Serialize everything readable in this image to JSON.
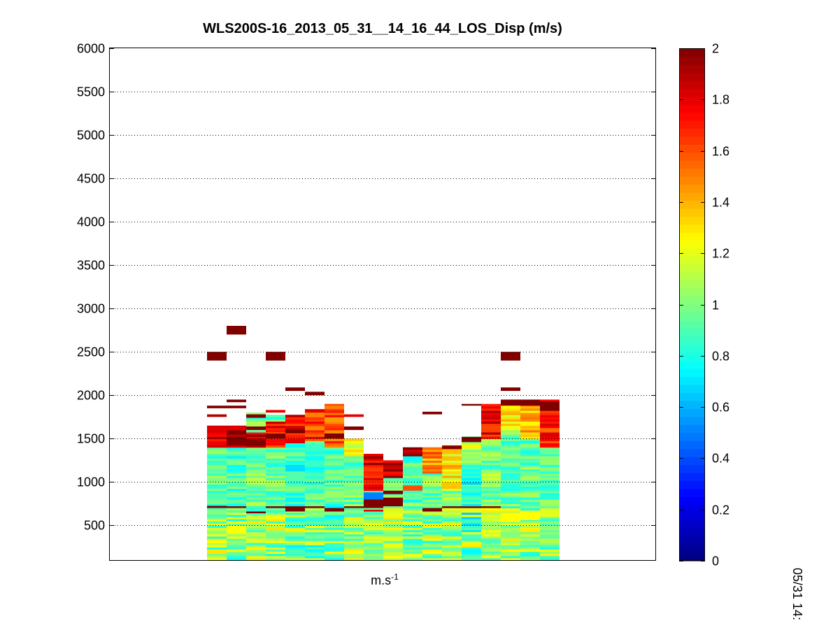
{
  "chart_data": {
    "type": "heatmap",
    "title": "WLS200S-16_2013_05_31__14_16_44_LOS_Disp (m/s)",
    "xlabel_base": "m.s",
    "xlabel_exp": "-1",
    "ylabel": "",
    "ylim": [
      100,
      6000
    ],
    "yticks": [
      500,
      1000,
      1500,
      2000,
      2500,
      3000,
      3500,
      4000,
      4500,
      5000,
      5500,
      6000
    ],
    "grid": "horizontal-dotted",
    "colorbar": {
      "colormap": "jet",
      "range": [
        0,
        2
      ],
      "ticks": [
        "0",
        "0.2",
        "0.4",
        "0.6",
        "0.8",
        "1",
        "1.2",
        "1.4",
        "1.6",
        "1.8",
        "2"
      ]
    },
    "profile_count": 18,
    "range_gate_m": 25,
    "profiles": [
      {
        "top": 1640,
        "mid": 0.95,
        "highband": [
          1400,
          1640,
          1.85
        ],
        "extras": [
          [
            2400,
            2500,
            2.0
          ],
          [
            1850,
            1880,
            2.0
          ],
          [
            1750,
            1780,
            1.9
          ],
          [
            700,
            725,
            2.0
          ]
        ]
      },
      {
        "top": 1640,
        "mid": 0.9,
        "highband": [
          1380,
          1640,
          1.95
        ],
        "extras": [
          [
            2700,
            2800,
            2.0
          ],
          [
            1920,
            1950,
            2.0
          ],
          [
            1850,
            1880,
            2.0
          ],
          [
            700,
            720,
            2.0
          ]
        ]
      },
      {
        "top": 1780,
        "mid": 1.0,
        "highband": [
          1380,
          1560,
          1.9
        ],
        "extras": [
          [
            1600,
            1640,
            2.0
          ],
          [
            1740,
            1780,
            2.0
          ],
          [
            640,
            660,
            2.0
          ]
        ]
      },
      {
        "top": 1760,
        "mid": 0.95,
        "highband": [
          1400,
          1700,
          1.7
        ],
        "extras": [
          [
            2400,
            2500,
            2.0
          ],
          [
            1800,
            1830,
            1.8
          ],
          [
            1500,
            1560,
            2.0
          ],
          [
            700,
            720,
            2.0
          ]
        ]
      },
      {
        "top": 1760,
        "mid": 0.85,
        "highband": [
          1450,
          1760,
          1.75
        ],
        "extras": [
          [
            2050,
            2090,
            2.0
          ],
          [
            1560,
            1600,
            2.0
          ],
          [
            660,
            720,
            2.0
          ]
        ]
      },
      {
        "top": 1780,
        "mid": 0.9,
        "highband": [
          1460,
          1780,
          1.65
        ],
        "extras": [
          [
            2000,
            2040,
            2.0
          ],
          [
            1800,
            1840,
            1.8
          ],
          [
            700,
            720,
            2.0
          ]
        ]
      },
      {
        "top": 1880,
        "mid": 0.9,
        "highband": [
          1400,
          1880,
          1.6
        ],
        "extras": [
          [
            1500,
            1560,
            2.0
          ],
          [
            1840,
            1880,
            1.5
          ],
          [
            660,
            700,
            2.0
          ]
        ]
      },
      {
        "top": 1480,
        "mid": 0.95,
        "highband": [
          1300,
          1480,
          1.2
        ],
        "extras": [
          [
            1600,
            1640,
            2.0
          ],
          [
            1750,
            1780,
            1.8
          ],
          [
            700,
            720,
            2.0
          ]
        ]
      },
      {
        "top": 1320,
        "mid": 1.0,
        "highband": [
          900,
          1320,
          1.8
        ],
        "extras": [
          [
            700,
            800,
            2.0
          ],
          [
            800,
            880,
            0.5
          ],
          [
            660,
            680,
            1.8
          ]
        ]
      },
      {
        "top": 1250,
        "mid": 1.05,
        "highband": [
          1050,
          1250,
          1.9
        ],
        "extras": [
          [
            720,
            820,
            2.0
          ],
          [
            860,
            900,
            2.0
          ]
        ]
      },
      {
        "top": 1400,
        "mid": 0.9,
        "highband": [
          1300,
          1400,
          2.0
        ],
        "extras": [
          [
            900,
            960,
            1.6
          ],
          [
            720,
            760,
            1.1
          ]
        ]
      },
      {
        "top": 1380,
        "mid": 0.95,
        "highband": [
          1100,
          1380,
          1.5
        ],
        "extras": [
          [
            1780,
            1810,
            2.0
          ],
          [
            660,
            700,
            2.0
          ]
        ]
      },
      {
        "top": 1420,
        "mid": 1.0,
        "highband": [
          900,
          1420,
          1.3
        ],
        "extras": [
          [
            1380,
            1420,
            2.0
          ],
          [
            700,
            720,
            2.0
          ]
        ]
      },
      {
        "top": 1520,
        "mid": 0.8,
        "highband": [
          1200,
          1520,
          1.1
        ],
        "extras": [
          [
            1460,
            1520,
            2.0
          ],
          [
            1880,
            1900,
            2.0
          ],
          [
            700,
            720,
            2.0
          ]
        ]
      },
      {
        "top": 1900,
        "mid": 1.0,
        "highband": [
          1500,
          1900,
          1.75
        ],
        "extras": [
          [
            700,
            720,
            2.0
          ]
        ]
      },
      {
        "top": 1950,
        "mid": 0.95,
        "highband": [
          1600,
          1950,
          1.3
        ],
        "extras": [
          [
            2400,
            2500,
            2.0
          ],
          [
            2050,
            2090,
            2.0
          ],
          [
            1880,
            1950,
            2.0
          ],
          [
            540,
            640,
            1.25
          ]
        ]
      },
      {
        "top": 1950,
        "mid": 0.95,
        "highband": [
          1500,
          1900,
          1.4
        ],
        "extras": [
          [
            1880,
            1950,
            2.0
          ],
          [
            560,
            660,
            1.25
          ]
        ]
      },
      {
        "top": 1930,
        "mid": 0.95,
        "highband": [
          1400,
          1930,
          1.7
        ],
        "extras": [
          [
            1820,
            1930,
            2.0
          ],
          [
            600,
            680,
            1.2
          ]
        ]
      }
    ]
  },
  "side_label": "05/31 14:"
}
